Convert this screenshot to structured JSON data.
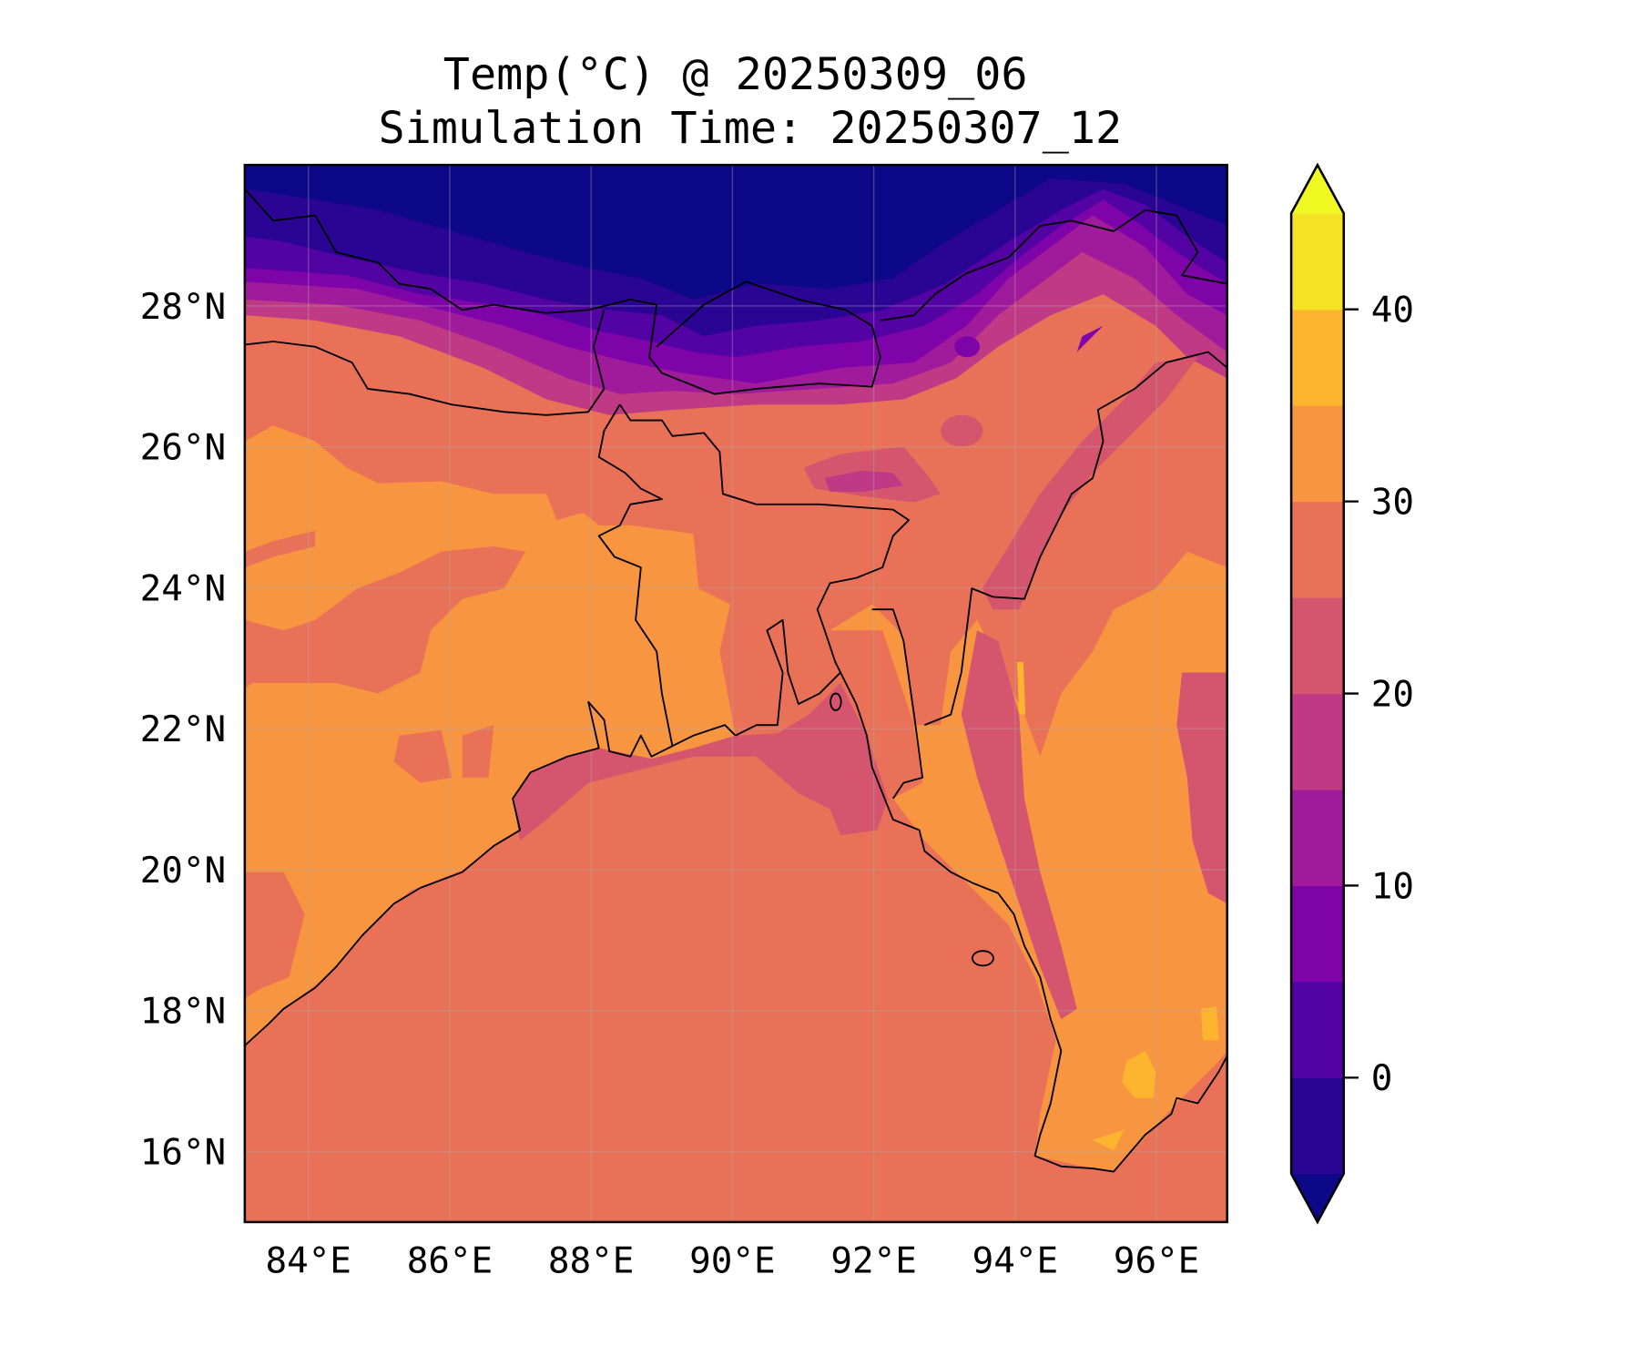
{
  "chart_data": {
    "type": "heatmap",
    "subtype": "filled-contour-map",
    "title": "Temp(°C) @ 20250309_06",
    "subtitle": "Simulation Time: 20250307_12",
    "xlabel": "",
    "ylabel": "",
    "xlim": [
      83.1,
      97.0
    ],
    "ylim": [
      15.0,
      30.0
    ],
    "x_ticks": [
      84,
      86,
      88,
      90,
      92,
      94,
      96
    ],
    "x_tick_labels": [
      "84°E",
      "86°E",
      "88°E",
      "90°E",
      "92°E",
      "94°E",
      "96°E"
    ],
    "y_ticks": [
      16,
      18,
      20,
      22,
      24,
      26,
      28
    ],
    "y_tick_labels": [
      "16°N",
      "18°N",
      "20°N",
      "22°N",
      "24°N",
      "26°N",
      "28°N"
    ],
    "grid": true,
    "colorbar": {
      "levels": [
        -5,
        0,
        5,
        10,
        15,
        20,
        25,
        30,
        35,
        40,
        45
      ],
      "ticks": [
        0,
        10,
        20,
        30,
        40
      ],
      "tick_labels": [
        "0",
        "10",
        "20",
        "30",
        "40"
      ],
      "extend": "both",
      "under_color": "#0d0887",
      "over_color": "#f0f921",
      "colors": [
        "#2a0593",
        "#5302a3",
        "#7e03a8",
        "#a01a9c",
        "#bf3984",
        "#d5546e",
        "#e97158",
        "#f89540",
        "#fdb42f",
        "#f5e326"
      ],
      "placement": "right"
    },
    "regions_summary": {
      "himalaya_tibet": "-5 to 10",
      "bay_of_bengal": "25 to 30",
      "head_of_bay": "20 to 25",
      "india_bangladesh_myanmar_lowlands": "30 to 35",
      "southern_myanmar_hotspots": "35 to 40"
    }
  }
}
